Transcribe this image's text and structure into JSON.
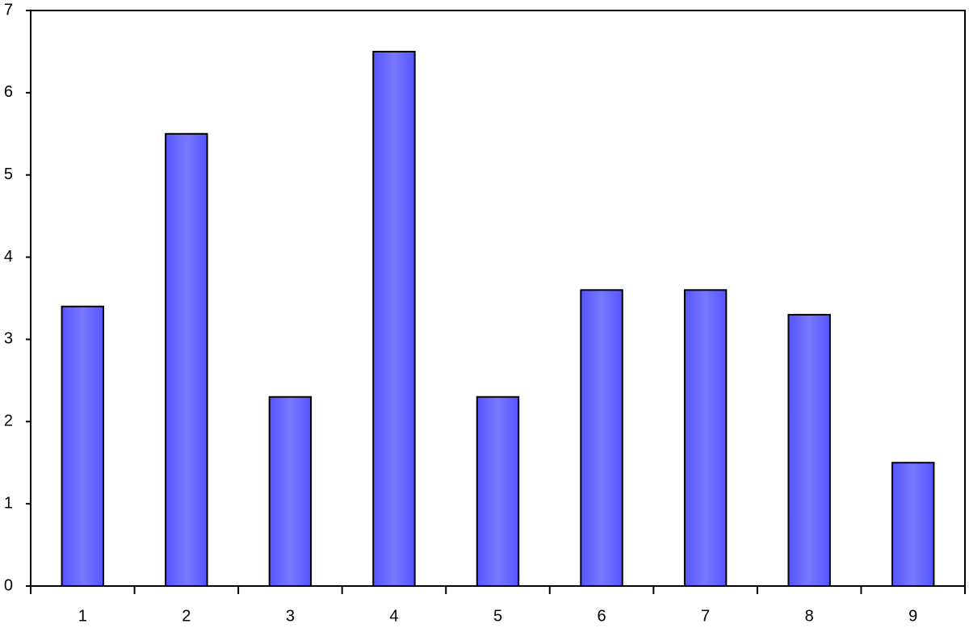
{
  "chart_data": {
    "type": "bar",
    "categories": [
      "1",
      "2",
      "3",
      "4",
      "5",
      "6",
      "7",
      "8",
      "9"
    ],
    "values": [
      3.4,
      5.5,
      2.3,
      6.5,
      2.3,
      3.6,
      3.6,
      3.3,
      1.5
    ],
    "color": "#5555ff",
    "ylim": [
      0,
      7
    ],
    "yticks": [
      0,
      1,
      2,
      3,
      4,
      5,
      6,
      7
    ],
    "grid": false
  }
}
